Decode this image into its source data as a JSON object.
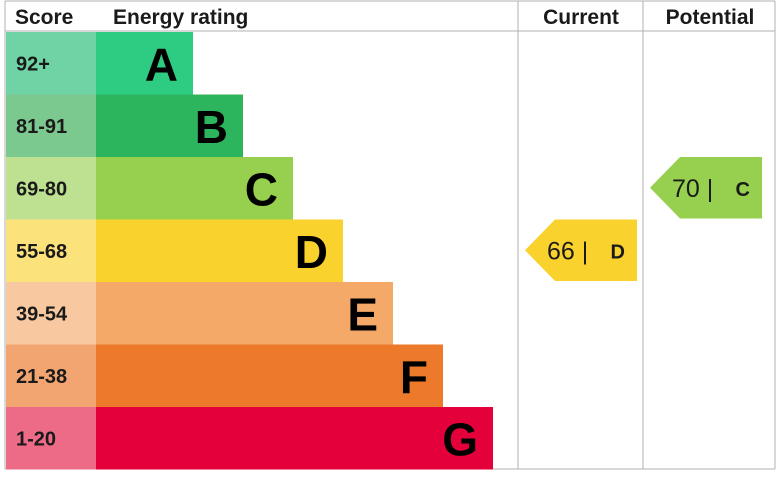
{
  "header": {
    "score": "Score",
    "energy_rating": "Energy rating",
    "current": "Current",
    "potential": "Potential"
  },
  "chart_data": {
    "type": "bar",
    "bands": [
      {
        "letter": "A",
        "range": "92+",
        "color": "#2ecc82",
        "score_bg": "#6fd3a5"
      },
      {
        "letter": "B",
        "range": "81-91",
        "color": "#2db55d",
        "score_bg": "#7cc990"
      },
      {
        "letter": "C",
        "range": "69-80",
        "color": "#96d04e",
        "score_bg": "#bde191"
      },
      {
        "letter": "D",
        "range": "55-68",
        "color": "#fad22d",
        "score_bg": "#fce27a"
      },
      {
        "letter": "E",
        "range": "39-54",
        "color": "#f5a968",
        "score_bg": "#f8c8a0"
      },
      {
        "letter": "F",
        "range": "21-38",
        "color": "#ec7a2a",
        "score_bg": "#f2a570"
      },
      {
        "letter": "G",
        "range": "1-20",
        "color": "#e4003a",
        "score_bg": "#ee6b88"
      }
    ],
    "current": {
      "value": 66,
      "value_label": "66 |",
      "letter": "D",
      "color": "#fad22d"
    },
    "potential": {
      "value": 70,
      "value_label": "70 |",
      "letter": "C",
      "color": "#96d04e"
    }
  }
}
